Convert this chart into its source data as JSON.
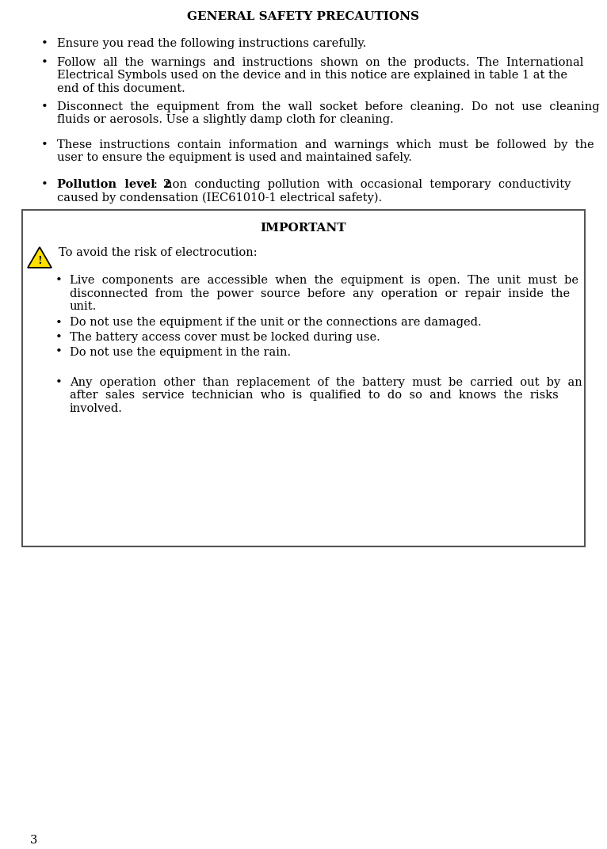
{
  "title": "GENERAL SAFETY PRECAUTIONS",
  "page_number": "3",
  "bg_color": "#ffffff",
  "text_color": "#000000",
  "font_size": 10.5,
  "title_font_size": 11,
  "bullet1": "Ensure you read the following instructions carefully.",
  "bullet2_l1": "Follow  all  the  warnings  and  instructions  shown  on  the  products.  The  International",
  "bullet2_l2": "Electrical Symbols used on the device and in this notice are explained in table 1 at the",
  "bullet2_l3": "end of this document.",
  "bullet3_l1": "Disconnect  the  equipment  from  the  wall  socket  before  cleaning.  Do  not  use  cleaning",
  "bullet3_l2": "fluids or aerosols. Use a slightly damp cloth for cleaning.",
  "bullet4_l1": "These  instructions  contain  information  and  warnings  which  must  be  followed  by  the",
  "bullet4_l2": "user to ensure the equipment is used and maintained safely.",
  "poll_bold": "Pollution  level  2",
  "poll_l1": ":  non  conducting  pollution  with  occasional  temporary  conductivity",
  "poll_l2": "caused by condensation (IEC61010-1 electrical safety).",
  "important_title": "IMPORTANT",
  "warning_line": "To avoid the risk of electrocution:",
  "ib1_l1": "Live  components  are  accessible  when  the  equipment  is  open.  The  unit  must  be",
  "ib1_l2": "disconnected  from  the  power  source  before  any  operation  or  repair  inside  the",
  "ib1_l3": "unit.",
  "ib2": "Do not use the equipment if the unit or the connections are damaged.",
  "ib3": "The battery access cover must be locked during use.",
  "ib4": "Do not use the equipment in the rain.",
  "ib5_l1": "Any  operation  other  than  replacement  of  the  battery  must  be  carried  out  by  an",
  "ib5_l2": "after  sales  service  technician  who  is  qualified  to  do  so  and  knows  the  risks",
  "ib5_l3": "involved.",
  "tri_color": "#FFE000",
  "tri_border": "#000000",
  "box_border": "#555555"
}
